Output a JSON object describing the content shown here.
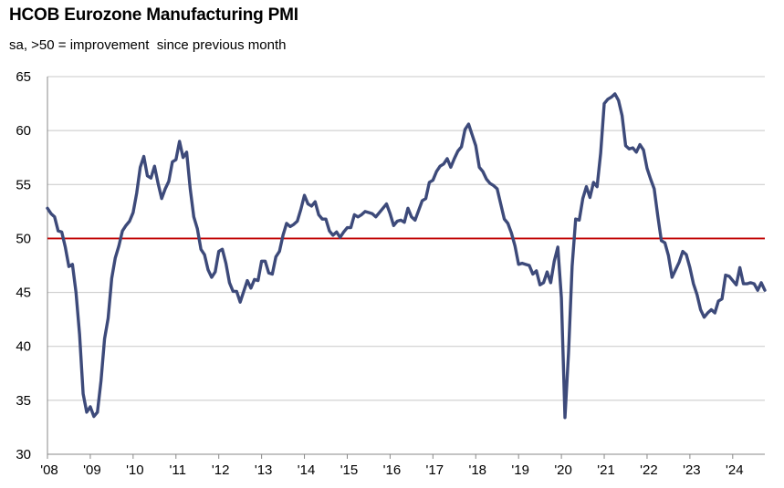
{
  "chart_data": {
    "type": "line",
    "title": "HCOB Eurozone Manufacturing PMI",
    "subtitle": "sa, >50 = improvement  since previous month",
    "xlabel": "",
    "ylabel": "",
    "ylim": [
      30,
      65
    ],
    "yticks": [
      "30",
      "35",
      "40",
      "45",
      "50",
      "55",
      "60",
      "65"
    ],
    "xticks": [
      "'08",
      "'09",
      "'10",
      "'11",
      "'12",
      "'13",
      "'14",
      "'15",
      "'16",
      "'17",
      "'18",
      "'19",
      "'20",
      "'21",
      "'22",
      "'23",
      "'24"
    ],
    "grid": true,
    "reference_line": {
      "value": 50,
      "color": "#c00000"
    },
    "line_color": "#3d4a7a",
    "x_start": "2008-01",
    "series": [
      {
        "values": [
          52.8,
          52.3,
          52.0,
          50.7,
          50.6,
          49.2,
          47.4,
          47.6,
          45.0,
          41.1,
          35.6,
          33.9,
          34.4,
          33.5,
          33.9,
          36.8,
          40.7,
          42.6,
          46.3,
          48.2,
          49.3,
          50.7,
          51.2,
          51.6,
          52.4,
          54.2,
          56.6,
          57.6,
          55.8,
          55.6,
          56.7,
          55.1,
          53.7,
          54.6,
          55.3,
          57.1,
          57.3,
          59.0,
          57.5,
          58.0,
          54.6,
          52.0,
          50.9,
          49.0,
          48.5,
          47.1,
          46.4,
          46.9,
          48.8,
          49.0,
          47.7,
          45.9,
          45.1,
          45.1,
          44.1,
          45.1,
          46.1,
          45.4,
          46.2,
          46.1,
          47.9,
          47.9,
          46.8,
          46.7,
          48.3,
          48.8,
          50.3,
          51.4,
          51.1,
          51.3,
          51.6,
          52.7,
          54.0,
          53.2,
          53.0,
          53.4,
          52.2,
          51.8,
          51.8,
          50.7,
          50.3,
          50.6,
          50.1,
          50.6,
          51.0,
          51.0,
          52.2,
          52.0,
          52.2,
          52.5,
          52.4,
          52.3,
          52.0,
          52.4,
          52.8,
          53.2,
          52.3,
          51.2,
          51.6,
          51.7,
          51.5,
          52.8,
          52.0,
          51.7,
          52.6,
          53.5,
          53.7,
          55.2,
          55.4,
          56.2,
          56.7,
          56.9,
          57.4,
          56.6,
          57.4,
          58.1,
          58.5,
          60.1,
          60.6,
          59.6,
          58.6,
          56.6,
          56.2,
          55.5,
          55.1,
          54.9,
          54.6,
          53.2,
          51.8,
          51.4,
          50.5,
          49.3,
          47.6,
          47.7,
          47.6,
          47.5,
          46.7,
          47.0,
          45.7,
          45.9,
          46.9,
          45.9,
          47.9,
          49.2,
          44.5,
          33.4,
          39.4,
          47.4,
          51.8,
          51.7,
          53.7,
          54.8,
          53.8,
          55.2,
          54.8,
          57.9,
          62.5,
          62.9,
          63.1,
          63.4,
          62.8,
          61.4,
          58.6,
          58.3,
          58.4,
          58.0,
          58.7,
          58.2,
          56.5,
          55.5,
          54.6,
          52.1,
          49.8,
          49.6,
          48.4,
          46.4,
          47.1,
          47.8,
          48.8,
          48.5,
          47.3,
          45.8,
          44.8,
          43.4,
          42.7,
          43.1,
          43.4,
          43.1,
          44.2,
          44.4,
          46.6,
          46.5,
          46.1,
          45.7,
          47.3,
          45.8,
          45.8,
          45.9,
          45.8,
          45.2,
          45.9,
          45.2
        ]
      }
    ]
  }
}
